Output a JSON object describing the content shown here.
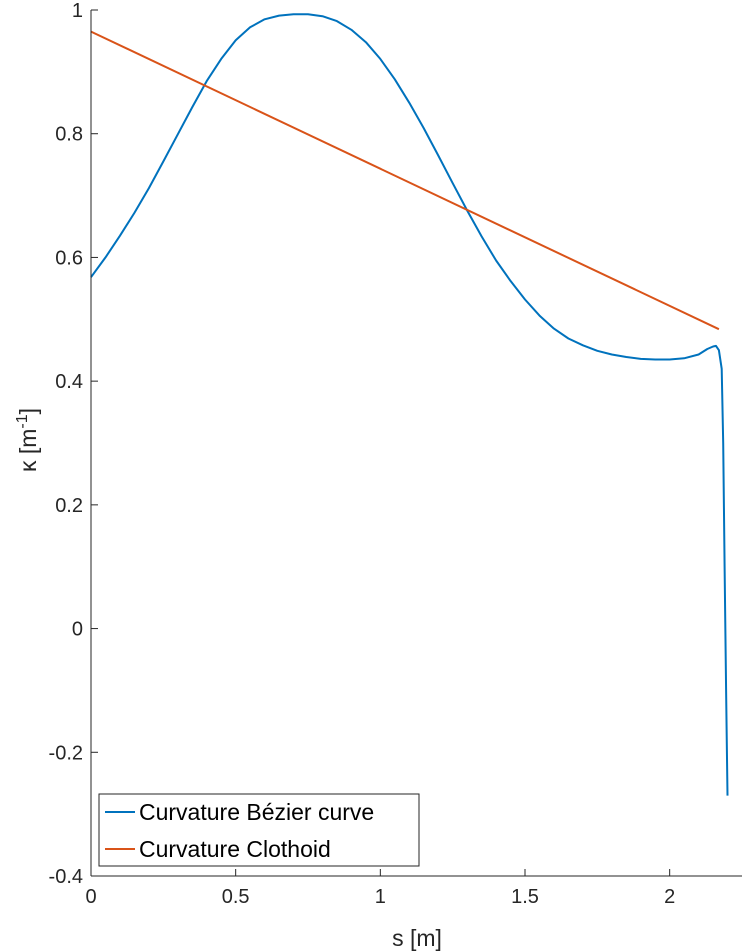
{
  "chart_data": {
    "type": "line",
    "xlabel": "s [m]",
    "ylabel": {
      "main": "κ [m",
      "sup": "-1",
      "close": "]"
    },
    "xlim": [
      0,
      2.25
    ],
    "ylim": [
      -0.4,
      1
    ],
    "xticks": [
      0,
      0.5,
      1,
      1.5,
      2
    ],
    "xtick_labels": [
      "0",
      "0.5",
      "1",
      "1.5",
      "2"
    ],
    "yticks": [
      -0.4,
      -0.2,
      0,
      0.2,
      0.4,
      0.6,
      0.8,
      1
    ],
    "ytick_labels": [
      "-0.4",
      "-0.2",
      "0",
      "0.2",
      "0.4",
      "0.6",
      "0.8",
      "1"
    ],
    "grid": false,
    "legend_position": "bottom-left",
    "series": [
      {
        "name": "Curvature Bézier curve",
        "color": "#0072BD",
        "points": [
          [
            0,
            0.568
          ],
          [
            0.05,
            0.6
          ],
          [
            0.1,
            0.635
          ],
          [
            0.15,
            0.672
          ],
          [
            0.2,
            0.712
          ],
          [
            0.25,
            0.755
          ],
          [
            0.3,
            0.799
          ],
          [
            0.35,
            0.843
          ],
          [
            0.4,
            0.885
          ],
          [
            0.45,
            0.921
          ],
          [
            0.5,
            0.951
          ],
          [
            0.55,
            0.972
          ],
          [
            0.6,
            0.985
          ],
          [
            0.65,
            0.991
          ],
          [
            0.7,
            0.993
          ],
          [
            0.75,
            0.993
          ],
          [
            0.8,
            0.99
          ],
          [
            0.85,
            0.982
          ],
          [
            0.9,
            0.968
          ],
          [
            0.95,
            0.948
          ],
          [
            1.0,
            0.921
          ],
          [
            1.05,
            0.888
          ],
          [
            1.1,
            0.85
          ],
          [
            1.15,
            0.809
          ],
          [
            1.2,
            0.765
          ],
          [
            1.25,
            0.72
          ],
          [
            1.3,
            0.676
          ],
          [
            1.35,
            0.634
          ],
          [
            1.4,
            0.595
          ],
          [
            1.45,
            0.562
          ],
          [
            1.5,
            0.532
          ],
          [
            1.55,
            0.506
          ],
          [
            1.6,
            0.485
          ],
          [
            1.65,
            0.469
          ],
          [
            1.7,
            0.458
          ],
          [
            1.75,
            0.449
          ],
          [
            1.8,
            0.443
          ],
          [
            1.85,
            0.439
          ],
          [
            1.9,
            0.436
          ],
          [
            1.95,
            0.435
          ],
          [
            2.0,
            0.435
          ],
          [
            2.05,
            0.437
          ],
          [
            2.1,
            0.443
          ],
          [
            2.13,
            0.452
          ],
          [
            2.15,
            0.456
          ],
          [
            2.16,
            0.457
          ],
          [
            2.17,
            0.45
          ],
          [
            2.18,
            0.42
          ],
          [
            2.185,
            0.3
          ],
          [
            2.19,
            0.1
          ],
          [
            2.195,
            -0.1
          ],
          [
            2.2,
            -0.27
          ]
        ]
      },
      {
        "name": "Curvature Clothoid",
        "color": "#D95319",
        "points": [
          [
            0,
            0.965
          ],
          [
            2.17,
            0.484
          ]
        ]
      }
    ]
  }
}
